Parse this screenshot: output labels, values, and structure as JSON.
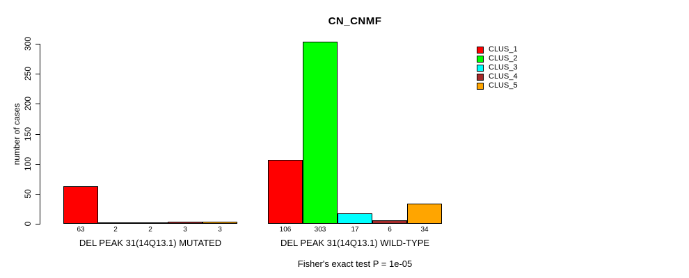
{
  "chart_data": {
    "type": "bar",
    "title": "CN_CNMF",
    "xlabel": "",
    "ylabel": "number of cases",
    "ylim": [
      0,
      300
    ],
    "yticks": [
      0,
      50,
      100,
      150,
      200,
      250,
      300
    ],
    "grid": false,
    "legend_position": "right",
    "bar_value_labels": true,
    "series": [
      {
        "name": "CLUS_1",
        "color": "#FF0000"
      },
      {
        "name": "CLUS_2",
        "color": "#00FF00"
      },
      {
        "name": "CLUS_3",
        "color": "#00FFFF"
      },
      {
        "name": "CLUS_4",
        "color": "#A52A2A"
      },
      {
        "name": "CLUS_5",
        "color": "#FFA500"
      }
    ],
    "groups": [
      {
        "label": "DEL PEAK 31(14Q13.1) MUTATED",
        "values": [
          63,
          2,
          2,
          3,
          3
        ]
      },
      {
        "label": "DEL PEAK 31(14Q13.1) WILD-TYPE",
        "values": [
          106,
          303,
          17,
          6,
          34
        ]
      }
    ],
    "annotation": "Fisher's exact test P = 1e-05"
  }
}
